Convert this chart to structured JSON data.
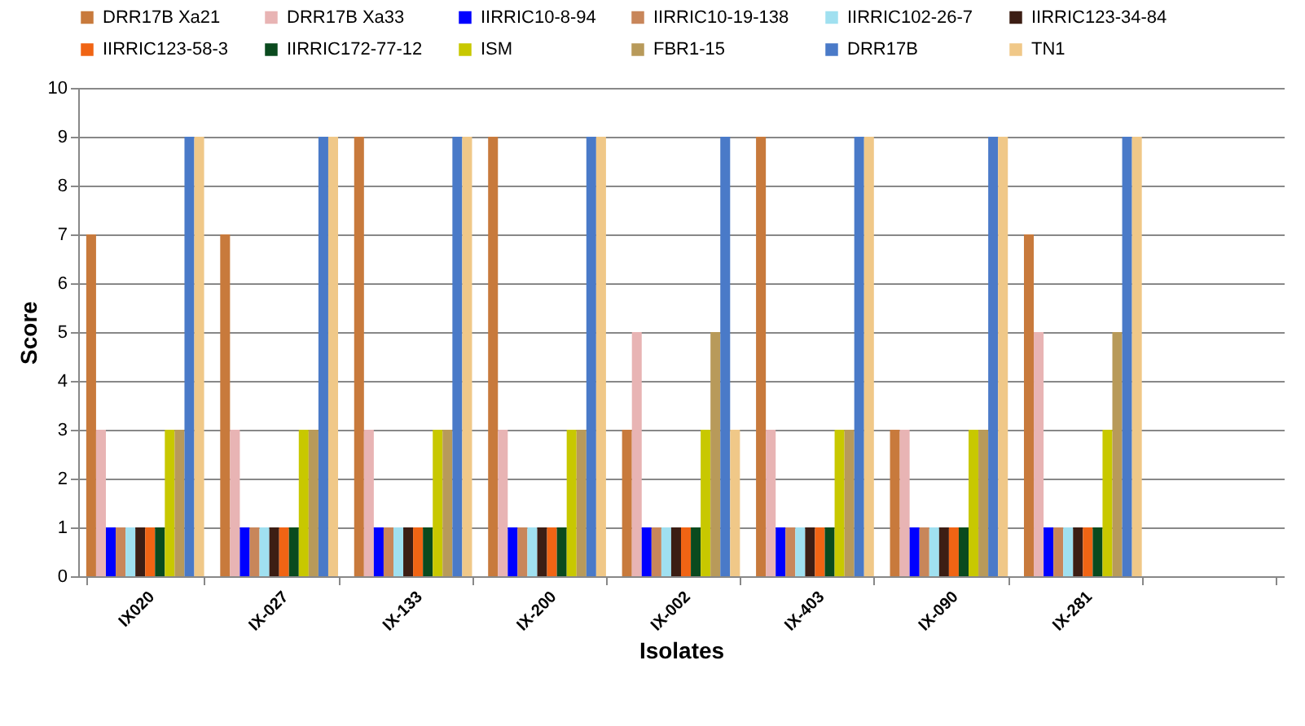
{
  "chart_data": {
    "type": "bar",
    "xlabel": "Isolates",
    "ylabel": "Score",
    "categories": [
      "IX020",
      "IX-027",
      "IX-133",
      "IX-200",
      "IX-002",
      "IX-403",
      "IX-090",
      "IX-281",
      null
    ],
    "ylim": [
      0,
      10
    ],
    "yticks": [
      0,
      1,
      2,
      3,
      4,
      5,
      6,
      7,
      8,
      9,
      10
    ],
    "grid": "y",
    "legend": "top",
    "series": [
      {
        "name": "DRR17B Xa21",
        "color": "#c87a3c",
        "values": [
          7,
          7,
          9,
          9,
          3,
          9,
          3,
          7,
          null
        ]
      },
      {
        "name": "DRR17B Xa33",
        "color": "#e8b4b4",
        "values": [
          3,
          3,
          3,
          3,
          5,
          3,
          3,
          5,
          null
        ]
      },
      {
        "name": "IIRRIC10-8-94",
        "color": "#0000ff",
        "values": [
          1,
          1,
          1,
          1,
          1,
          1,
          1,
          1,
          null
        ]
      },
      {
        "name": "IIRRIC10-19-138",
        "color": "#c8865a",
        "values": [
          1,
          1,
          1,
          1,
          1,
          1,
          1,
          1,
          null
        ]
      },
      {
        "name": "IIRRIC102-26-7",
        "color": "#a0e0f0",
        "values": [
          1,
          1,
          1,
          1,
          1,
          1,
          1,
          1,
          null
        ]
      },
      {
        "name": "IIRRIC123-34-84",
        "color": "#3c1e14",
        "values": [
          1,
          1,
          1,
          1,
          1,
          1,
          1,
          1,
          null
        ]
      },
      {
        "name": "IIRRIC123-58-3",
        "color": "#f06414",
        "values": [
          1,
          1,
          1,
          1,
          1,
          1,
          1,
          1,
          null
        ]
      },
      {
        "name": "IIRRIC172-77-12",
        "color": "#0a4a1e",
        "values": [
          1,
          1,
          1,
          1,
          1,
          1,
          1,
          1,
          null
        ]
      },
      {
        "name": "ISM",
        "color": "#c8c800",
        "values": [
          3,
          3,
          3,
          3,
          3,
          3,
          3,
          3,
          null
        ]
      },
      {
        "name": "FBR1-15",
        "color": "#b89a5a",
        "values": [
          3,
          3,
          3,
          3,
          5,
          3,
          3,
          5,
          null
        ]
      },
      {
        "name": "DRR17B",
        "color": "#4a7ac8",
        "values": [
          9,
          9,
          9,
          9,
          9,
          9,
          9,
          9,
          null
        ]
      },
      {
        "name": "TN1",
        "color": "#f0c888",
        "values": [
          9,
          9,
          9,
          9,
          3,
          9,
          9,
          9,
          null
        ]
      }
    ]
  }
}
